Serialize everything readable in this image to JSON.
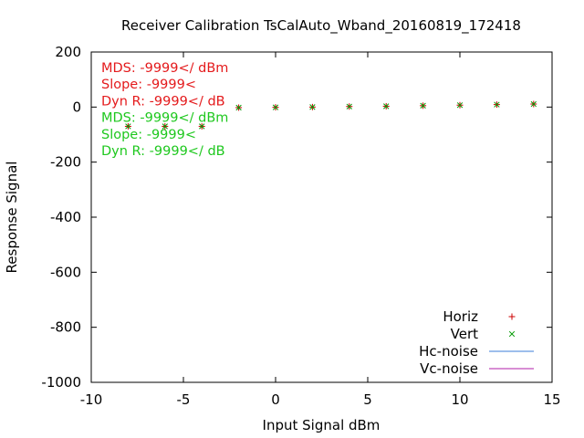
{
  "chart_data": {
    "type": "scatter",
    "title": "Receiver Calibration TsCalAuto_Wband_20160819_172418",
    "xlabel": "Input Signal dBm",
    "ylabel": "Response Signal",
    "xlim": [
      -10,
      15
    ],
    "ylim": [
      -1000,
      200
    ],
    "xticks": [
      -10,
      -5,
      0,
      5,
      10,
      15
    ],
    "yticks": [
      200,
      0,
      -200,
      -400,
      -600,
      -800,
      -1000
    ],
    "grid": false,
    "legend_position": "bottom-right",
    "annotations": [
      {
        "text": "MDS: -9999</ dBm",
        "color": "#e41a1c"
      },
      {
        "text": "Slope: -9999<",
        "color": "#e41a1c"
      },
      {
        "text": "Dyn R: -9999</ dB",
        "color": "#e41a1c"
      },
      {
        "text": "MDS: -9999</ dBm",
        "color": "#1ec81e"
      },
      {
        "text": "Slope: -9999<",
        "color": "#1ec81e"
      },
      {
        "text": "Dyn R: -9999</ dB",
        "color": "#1ec81e"
      }
    ],
    "series": [
      {
        "name": "Horiz",
        "marker": "plus",
        "color": "#cc0000",
        "x": [
          -8,
          -6,
          -4,
          -2,
          0,
          2,
          4,
          6,
          8,
          10,
          12,
          14
        ],
        "y": [
          -70,
          -70,
          -70,
          -2,
          -1,
          0,
          2,
          3,
          5,
          7,
          9,
          11
        ]
      },
      {
        "name": "Vert",
        "marker": "cross",
        "color": "#009900",
        "x": [
          -8,
          -6,
          -4,
          -2,
          0,
          2,
          4,
          6,
          8,
          10,
          12,
          14
        ],
        "y": [
          -70,
          -70,
          -70,
          -2,
          -1,
          0,
          2,
          3,
          5,
          7,
          9,
          11
        ]
      },
      {
        "name": "Hc-noise",
        "marker": "line",
        "color": "#3b7dd8",
        "x": [],
        "y": []
      },
      {
        "name": "Vc-noise",
        "marker": "line",
        "color": "#b01ea8",
        "x": [],
        "y": []
      }
    ]
  }
}
